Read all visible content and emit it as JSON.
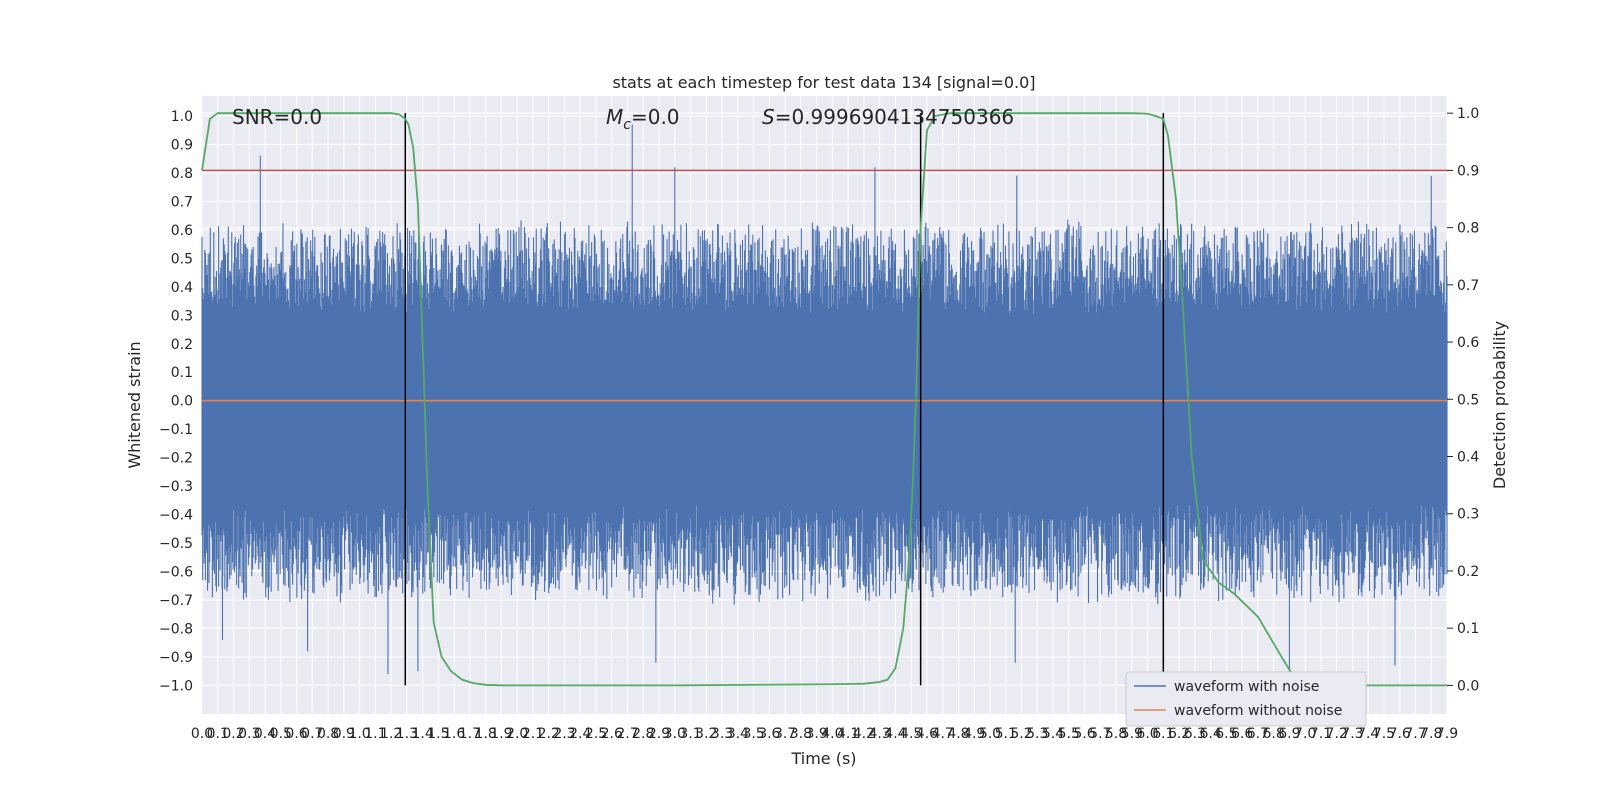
{
  "chart_data": {
    "type": "line",
    "title": "stats at each timestep for test data 134 [signal=0.0]",
    "xlabel": "Time (s)",
    "ylabel_left": "Whitened strain",
    "ylabel_right": "Detection probability",
    "xlim": [
      0.0,
      7.9
    ],
    "ylim_left": [
      -1.1,
      1.07
    ],
    "ylim_right": [
      -0.05,
      1.03
    ],
    "grid": true,
    "x_tick_step": 0.1,
    "left_yticks": [
      "1.0",
      "0.9",
      "0.8",
      "0.7",
      "0.6",
      "0.5",
      "0.4",
      "0.3",
      "0.2",
      "0.1",
      "0.0",
      "-0.1",
      "-0.2",
      "-0.3",
      "-0.4",
      "-0.5",
      "-0.6",
      "-0.7",
      "-0.8",
      "-0.9",
      "-1.0"
    ],
    "right_yticks": [
      "1.0",
      "0.9",
      "0.8",
      "0.7",
      "0.6",
      "0.5",
      "0.4",
      "0.3",
      "0.2",
      "0.1",
      "0.0"
    ],
    "annotations": {
      "snr": "SNR=0.0",
      "mc_symbol": "M",
      "mc_sub": "c",
      "mc_value": "=0.0",
      "s_symbol": "S",
      "s_value": "=0.9996904134750366"
    },
    "series": [
      {
        "name": "waveform with noise",
        "color": "#4c72b0",
        "axis": "left",
        "amplitude_envelope": [
          0.36,
          -0.42
        ],
        "notable_peaks": [
          {
            "x": 0.37,
            "y": 0.86
          },
          {
            "x": 2.73,
            "y": 0.97
          },
          {
            "x": 3.0,
            "y": 0.82
          },
          {
            "x": 4.27,
            "y": 0.82
          },
          {
            "x": 5.17,
            "y": 0.79
          },
          {
            "x": 7.8,
            "y": 0.79
          },
          {
            "x": 0.13,
            "y": -0.84
          },
          {
            "x": 0.67,
            "y": -0.88
          },
          {
            "x": 1.18,
            "y": -0.96
          },
          {
            "x": 1.37,
            "y": -0.95
          },
          {
            "x": 2.88,
            "y": -0.92
          },
          {
            "x": 5.16,
            "y": -0.92
          },
          {
            "x": 6.9,
            "y": -0.98
          },
          {
            "x": 7.57,
            "y": -0.93
          }
        ]
      },
      {
        "name": "waveform without noise",
        "color": "#dd8452",
        "axis": "left",
        "constant": 0.0
      },
      {
        "name": "",
        "color": "#55a868",
        "axis": "right",
        "x": [
          0.0,
          0.05,
          0.1,
          0.2,
          0.4,
          0.8,
          1.1,
          1.2,
          1.25,
          1.29,
          1.31,
          1.34,
          1.37,
          1.4,
          1.43,
          1.47,
          1.52,
          1.58,
          1.65,
          1.72,
          1.8,
          1.9,
          2.0,
          3.0,
          4.0,
          4.2,
          4.3,
          4.35,
          4.4,
          4.45,
          4.48,
          4.51,
          4.53,
          4.56,
          4.6,
          4.65,
          4.75,
          4.9,
          5.5,
          5.9,
          6.0,
          6.05,
          6.1,
          6.13,
          6.18,
          6.22,
          6.28,
          6.35,
          6.45,
          6.55,
          6.7,
          6.85,
          6.95,
          7.0,
          7.3,
          7.9
        ],
        "values": [
          0.9,
          0.99,
          1.0,
          1.0,
          1.0,
          1.0,
          1.0,
          1.0,
          0.998,
          0.99,
          0.98,
          0.94,
          0.84,
          0.6,
          0.35,
          0.11,
          0.05,
          0.025,
          0.01,
          0.004,
          0.001,
          0.0,
          0.0,
          0.0,
          0.002,
          0.003,
          0.006,
          0.01,
          0.03,
          0.1,
          0.2,
          0.35,
          0.5,
          0.8,
          0.97,
          0.995,
          1.0,
          1.0,
          1.0,
          1.0,
          0.999,
          0.995,
          0.99,
          0.96,
          0.85,
          0.68,
          0.4,
          0.22,
          0.18,
          0.16,
          0.12,
          0.05,
          0.005,
          0.0,
          0.0,
          0.0
        ]
      }
    ],
    "horizontal_lines": [
      {
        "axis": "right",
        "y": 0.9,
        "color": "#c44e52"
      }
    ],
    "vertical_lines": [
      1.29,
      4.56,
      6.1
    ],
    "legend": {
      "position": "lower-right",
      "entries": [
        {
          "label": "waveform with noise",
          "color": "#4c72b0"
        },
        {
          "label": "waveform without noise",
          "color": "#dd8452"
        }
      ]
    }
  }
}
